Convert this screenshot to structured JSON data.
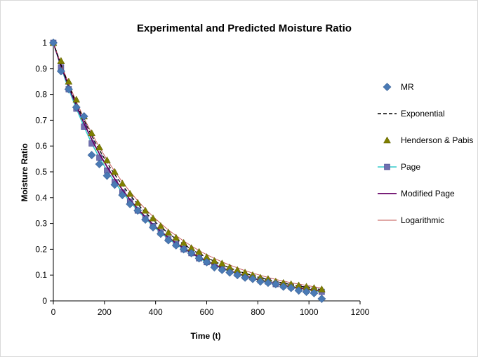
{
  "chart_data": {
    "type": "scatter",
    "title": "Experimental and Predicted Moisture Ratio",
    "xlabel": "Time (t)",
    "ylabel": "Moisture Ratio",
    "xlim": [
      0,
      1200
    ],
    "ylim": [
      0,
      1
    ],
    "xticks": [
      "0",
      "200",
      "400",
      "600",
      "800",
      "1000",
      "1200"
    ],
    "yticks": [
      "0",
      "0.1",
      "0.2",
      "0.3",
      "0.4",
      "0.5",
      "0.6",
      "0.7",
      "0.8",
      "0.9",
      "1"
    ],
    "grid": false,
    "legend_position": "right",
    "x": [
      0,
      30,
      60,
      90,
      120,
      150,
      180,
      210,
      240,
      270,
      300,
      330,
      360,
      390,
      420,
      450,
      480,
      510,
      540,
      570,
      600,
      630,
      660,
      690,
      720,
      750,
      780,
      810,
      840,
      870,
      900,
      930,
      960,
      990,
      1020,
      1050
    ],
    "series": [
      {
        "name": "MR",
        "style": "diamond-marker",
        "color": "#4a7ab5",
        "values": [
          1.0,
          0.89,
          0.82,
          0.75,
          0.715,
          0.565,
          0.53,
          0.485,
          0.45,
          0.41,
          0.375,
          0.35,
          0.315,
          0.285,
          0.26,
          0.235,
          0.215,
          0.2,
          0.185,
          0.165,
          0.15,
          0.13,
          0.12,
          0.11,
          0.1,
          0.09,
          0.085,
          0.075,
          0.07,
          0.065,
          0.055,
          0.05,
          0.04,
          0.035,
          0.03,
          0.008
        ]
      },
      {
        "name": "Exponential",
        "style": "dashed-line",
        "color": "#000000",
        "values": [
          1.0,
          0.915,
          0.836,
          0.765,
          0.7,
          0.64,
          0.585,
          0.535,
          0.49,
          0.448,
          0.41,
          0.375,
          0.343,
          0.313,
          0.287,
          0.262,
          0.24,
          0.219,
          0.2,
          0.183,
          0.168,
          0.153,
          0.14,
          0.128,
          0.117,
          0.107,
          0.098,
          0.09,
          0.082,
          0.075,
          0.069,
          0.063,
          0.057,
          0.053,
          0.048,
          0.044
        ]
      },
      {
        "name": "Henderson & Pabis",
        "style": "triangle-marker",
        "color": "#7f7f00",
        "values": [
          1.0,
          0.93,
          0.85,
          0.78,
          0.715,
          0.65,
          0.595,
          0.545,
          0.5,
          0.455,
          0.415,
          0.38,
          0.35,
          0.32,
          0.29,
          0.265,
          0.245,
          0.225,
          0.205,
          0.19,
          0.17,
          0.155,
          0.145,
          0.13,
          0.12,
          0.11,
          0.1,
          0.09,
          0.085,
          0.075,
          0.07,
          0.065,
          0.06,
          0.055,
          0.05,
          0.045
        ]
      },
      {
        "name": "Page",
        "style": "square-marker-line",
        "color": "#7070b0",
        "line_color": "#33cccc",
        "values": [
          1.0,
          0.905,
          0.82,
          0.745,
          0.675,
          0.61,
          0.555,
          0.505,
          0.46,
          0.42,
          0.385,
          0.35,
          0.32,
          0.29,
          0.265,
          0.24,
          0.22,
          0.2,
          0.185,
          0.165,
          0.15,
          0.14,
          0.125,
          0.115,
          0.105,
          0.095,
          0.09,
          0.08,
          0.075,
          0.065,
          0.06,
          0.055,
          0.05,
          0.045,
          0.04,
          0.035
        ]
      },
      {
        "name": "Modified Page",
        "style": "line",
        "color": "#660066",
        "values": [
          1.0,
          0.91,
          0.83,
          0.756,
          0.688,
          0.626,
          0.57,
          0.52,
          0.473,
          0.431,
          0.392,
          0.357,
          0.325,
          0.296,
          0.27,
          0.246,
          0.224,
          0.204,
          0.186,
          0.169,
          0.154,
          0.14,
          0.128,
          0.117,
          0.106,
          0.097,
          0.088,
          0.08,
          0.073,
          0.067,
          0.061,
          0.055,
          0.05,
          0.046,
          0.042,
          0.038
        ]
      },
      {
        "name": "Logarithmic",
        "style": "thin-line",
        "color": "#c0504d",
        "values": [
          1.0,
          0.918,
          0.842,
          0.772,
          0.708,
          0.65,
          0.596,
          0.547,
          0.502,
          0.461,
          0.423,
          0.388,
          0.356,
          0.327,
          0.3,
          0.275,
          0.253,
          0.232,
          0.213,
          0.195,
          0.179,
          0.165,
          0.151,
          0.139,
          0.128,
          0.117,
          0.108,
          0.099,
          0.091,
          0.083,
          0.077,
          0.07,
          0.065,
          0.06,
          0.055,
          0.05
        ]
      }
    ]
  }
}
